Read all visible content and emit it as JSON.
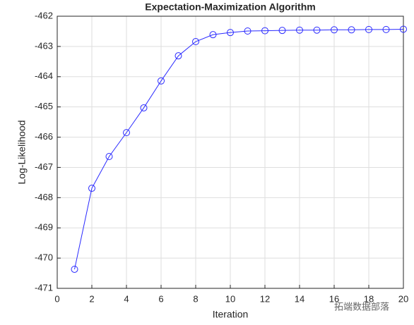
{
  "chart_data": {
    "type": "line",
    "title": "Expectation-Maximization Algorithm",
    "x_label": "Iteration",
    "y_label": "Log-Likelihood",
    "x": [
      1,
      2,
      3,
      4,
      5,
      6,
      7,
      8,
      9,
      10,
      11,
      12,
      13,
      14,
      15,
      16,
      17,
      18,
      19,
      20
    ],
    "series": [
      {
        "name": "Log-Likelihood",
        "color": "#2b2bff",
        "values": [
          -470.37,
          -467.69,
          -466.64,
          -465.85,
          -465.03,
          -464.14,
          -463.31,
          -462.84,
          -462.61,
          -462.54,
          -462.49,
          -462.48,
          -462.47,
          -462.46,
          -462.46,
          -462.45,
          -462.45,
          -462.44,
          -462.44,
          -462.43
        ]
      }
    ],
    "xlim": [
      0,
      20
    ],
    "xticks": [
      0,
      2,
      4,
      6,
      8,
      10,
      12,
      14,
      16,
      18,
      20
    ],
    "ylim": [
      -471,
      -462
    ],
    "yticks": [
      -471,
      -470,
      -469,
      -468,
      -467,
      -466,
      -465,
      -464,
      -463,
      -462
    ],
    "grid": true,
    "marker": "circle",
    "annotation": "拓端数据部落"
  }
}
